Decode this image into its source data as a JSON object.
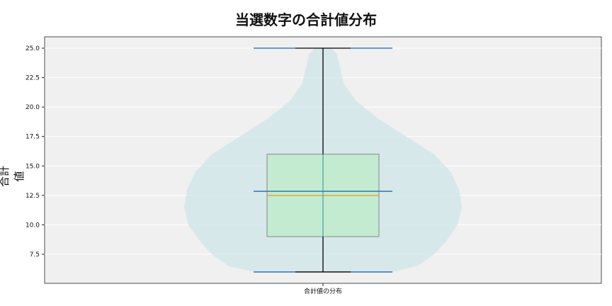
{
  "chart_data": {
    "type": "violin+box",
    "title": "当選数字の合計値分布",
    "xlabel": "",
    "ylabel": "合計値",
    "categories": [
      "合計値の分布"
    ],
    "ylim": [
      5.1,
      26
    ],
    "yticks": [
      7.5,
      10.0,
      12.5,
      15.0,
      17.5,
      20.0,
      22.5,
      25.0
    ],
    "grid": true,
    "box": {
      "min": 6,
      "q1": 9,
      "median": 12.5,
      "q3": 16,
      "max": 25
    },
    "violin": {
      "min": 6,
      "max": 25,
      "mean": 12.85,
      "median": 12.5,
      "density_profile": [
        {
          "y": 6,
          "d": 0.5
        },
        {
          "y": 6.5,
          "d": 0.68
        },
        {
          "y": 7.5,
          "d": 0.8
        },
        {
          "y": 8.5,
          "d": 0.88
        },
        {
          "y": 10,
          "d": 0.97
        },
        {
          "y": 11.5,
          "d": 1.0
        },
        {
          "y": 13,
          "d": 0.98
        },
        {
          "y": 14.5,
          "d": 0.92
        },
        {
          "y": 16,
          "d": 0.8
        },
        {
          "y": 17.5,
          "d": 0.6
        },
        {
          "y": 19,
          "d": 0.4
        },
        {
          "y": 20.5,
          "d": 0.24
        },
        {
          "y": 22,
          "d": 0.15
        },
        {
          "y": 23.5,
          "d": 0.12
        },
        {
          "y": 24.5,
          "d": 0.1
        },
        {
          "y": 25,
          "d": 0.06
        }
      ]
    },
    "colors": {
      "violin": "#cfe6ea",
      "box": "#c3ebd0",
      "median": "#e69a1c",
      "violin_lines": "#3a7fb5",
      "whisker": "#000000",
      "background": "#f0f0f0"
    }
  }
}
